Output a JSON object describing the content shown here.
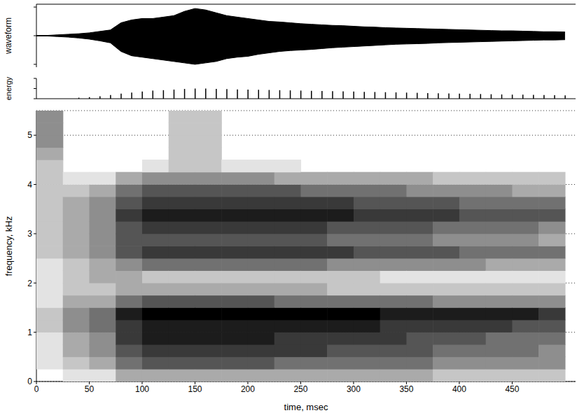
{
  "chart_data": [
    {
      "type": "area",
      "ylabel": "waveform",
      "color": "#000000",
      "tick_labels": false,
      "x": [
        0,
        10,
        20,
        30,
        40,
        50,
        60,
        70,
        80,
        90,
        100,
        110,
        120,
        130,
        140,
        150,
        160,
        170,
        180,
        190,
        200,
        210,
        220,
        230,
        240,
        250,
        260,
        270,
        280,
        290,
        300,
        310,
        320,
        330,
        340,
        350,
        360,
        370,
        380,
        390,
        400,
        410,
        420,
        430,
        440,
        450,
        460,
        470,
        480,
        490,
        500
      ],
      "upper": [
        0.01,
        0.01,
        0.03,
        0.05,
        0.07,
        0.1,
        0.15,
        0.2,
        0.45,
        0.55,
        0.6,
        0.6,
        0.65,
        0.7,
        0.85,
        0.95,
        0.9,
        0.8,
        0.7,
        0.65,
        0.6,
        0.55,
        0.5,
        0.48,
        0.45,
        0.42,
        0.4,
        0.38,
        0.36,
        0.35,
        0.33,
        0.31,
        0.3,
        0.28,
        0.27,
        0.26,
        0.25,
        0.24,
        0.23,
        0.22,
        0.21,
        0.2,
        0.19,
        0.18,
        0.17,
        0.17,
        0.16,
        0.15,
        0.14,
        0.14,
        0.13
      ],
      "lower": [
        -0.01,
        -0.01,
        -0.03,
        -0.05,
        -0.08,
        -0.12,
        -0.18,
        -0.25,
        -0.55,
        -0.7,
        -0.75,
        -0.8,
        -0.85,
        -0.9,
        -0.95,
        -1.0,
        -0.95,
        -0.9,
        -0.8,
        -0.75,
        -0.72,
        -0.65,
        -0.6,
        -0.55,
        -0.52,
        -0.5,
        -0.48,
        -0.45,
        -0.42,
        -0.4,
        -0.38,
        -0.36,
        -0.34,
        -0.32,
        -0.3,
        -0.29,
        -0.28,
        -0.27,
        -0.25,
        -0.24,
        -0.23,
        -0.22,
        -0.21,
        -0.2,
        -0.19,
        -0.18,
        -0.17,
        -0.16,
        -0.15,
        -0.15,
        -0.14
      ],
      "xlim": [
        0,
        510
      ],
      "ylim": [
        -1.1,
        1.1
      ],
      "yticks": [
        -1,
        0,
        1
      ]
    },
    {
      "type": "bar",
      "ylabel": "energy",
      "color": "#000000",
      "tick_labels": false,
      "x": [
        40,
        50,
        60,
        70,
        80,
        90,
        100,
        110,
        120,
        130,
        140,
        150,
        160,
        170,
        180,
        190,
        200,
        210,
        220,
        230,
        240,
        250,
        260,
        270,
        280,
        290,
        300,
        310,
        320,
        330,
        340,
        350,
        360,
        370,
        380,
        390,
        400,
        410,
        420,
        430,
        440,
        450,
        460,
        470,
        480,
        490,
        500
      ],
      "values": [
        0.05,
        0.08,
        0.12,
        0.18,
        0.25,
        0.3,
        0.35,
        0.4,
        0.42,
        0.45,
        0.48,
        0.5,
        0.5,
        0.48,
        0.47,
        0.46,
        0.45,
        0.44,
        0.43,
        0.42,
        0.41,
        0.4,
        0.39,
        0.38,
        0.37,
        0.36,
        0.35,
        0.34,
        0.33,
        0.32,
        0.31,
        0.3,
        0.29,
        0.28,
        0.27,
        0.26,
        0.25,
        0.24,
        0.23,
        0.22,
        0.21,
        0.2,
        0.2,
        0.19,
        0.18,
        0.17,
        0.16
      ],
      "xlim": [
        0,
        510
      ],
      "ylim": [
        0,
        1
      ],
      "yticks": [
        0,
        0.5,
        1
      ]
    },
    {
      "type": "heatmap",
      "xlabel": "time, msec",
      "ylabel": "frequency, kHz",
      "color": "#000000",
      "grid": true,
      "x": [
        0,
        25,
        50,
        75,
        100,
        125,
        150,
        175,
        200,
        225,
        250,
        275,
        300,
        325,
        350,
        375,
        400,
        425,
        450,
        475
      ],
      "y": [
        0,
        0.25,
        0.5,
        0.75,
        1,
        1.25,
        1.5,
        1.75,
        2,
        2.25,
        2.5,
        2.75,
        3,
        3.25,
        3.5,
        3.75,
        4,
        4.25,
        4.5,
        4.75,
        5,
        5.25
      ],
      "cells": [
        [
          0,
          1,
          1,
          1,
          2,
          2,
          1,
          1,
          1,
          1,
          2,
          2,
          2,
          2,
          2,
          2,
          2,
          2,
          3,
          4,
          4,
          4
        ],
        [
          1,
          2,
          3,
          3,
          4,
          4,
          3,
          2,
          2,
          2,
          3,
          3,
          3,
          3,
          3,
          2,
          1,
          0,
          0,
          0,
          0,
          0
        ],
        [
          1,
          3,
          4,
          4,
          5,
          5,
          3,
          2,
          3,
          3,
          4,
          4,
          4,
          4,
          4,
          3,
          1,
          0,
          0,
          0,
          0,
          0
        ],
        [
          3,
          5,
          6,
          7,
          7,
          8,
          5,
          3,
          3,
          4,
          6,
          6,
          6,
          7,
          6,
          5,
          3,
          0,
          0,
          0,
          0,
          0
        ],
        [
          3,
          6,
          7,
          8,
          8,
          9,
          6,
          3,
          2,
          5,
          7,
          6,
          7,
          8,
          7,
          6,
          4,
          1,
          0,
          0,
          0,
          0
        ],
        [
          3,
          6,
          7,
          8,
          8,
          9,
          6,
          3,
          2,
          5,
          7,
          6,
          7,
          8,
          7,
          6,
          4,
          2,
          2,
          2,
          2,
          2
        ],
        [
          3,
          6,
          7,
          8,
          8,
          9,
          6,
          3,
          2,
          5,
          7,
          6,
          7,
          8,
          7,
          6,
          4,
          2,
          2,
          2,
          2,
          2
        ],
        [
          3,
          6,
          7,
          8,
          8,
          9,
          6,
          3,
          2,
          5,
          7,
          6,
          7,
          8,
          7,
          6,
          4,
          1,
          0,
          0,
          0,
          0
        ],
        [
          3,
          6,
          7,
          8,
          8,
          9,
          6,
          3,
          2,
          5,
          7,
          6,
          7,
          8,
          7,
          6,
          4,
          1,
          0,
          0,
          0,
          0
        ],
        [
          3,
          5,
          7,
          7,
          8,
          9,
          5,
          3,
          2,
          5,
          7,
          6,
          7,
          8,
          7,
          6,
          3,
          1,
          0,
          0,
          0,
          0
        ],
        [
          3,
          5,
          7,
          7,
          8,
          9,
          5,
          3,
          2,
          5,
          7,
          6,
          7,
          8,
          7,
          5,
          3,
          0,
          0,
          0,
          0,
          0
        ],
        [
          3,
          5,
          6,
          7,
          8,
          9,
          5,
          2,
          2,
          4,
          7,
          5,
          6,
          8,
          7,
          5,
          3,
          0,
          0,
          0,
          0,
          0
        ],
        [
          3,
          5,
          6,
          7,
          8,
          9,
          5,
          2,
          2,
          4,
          6,
          5,
          6,
          7,
          6,
          5,
          3,
          0,
          0,
          0,
          0,
          0
        ],
        [
          3,
          5,
          6,
          7,
          7,
          8,
          5,
          2,
          1,
          4,
          6,
          5,
          6,
          7,
          6,
          5,
          3,
          0,
          0,
          0,
          0,
          0
        ],
        [
          3,
          5,
          6,
          6,
          7,
          8,
          5,
          2,
          1,
          4,
          6,
          5,
          6,
          7,
          6,
          4,
          3,
          0,
          0,
          0,
          0,
          0
        ],
        [
          2,
          4,
          5,
          6,
          7,
          8,
          4,
          2,
          1,
          4,
          6,
          4,
          5,
          7,
          6,
          4,
          2,
          0,
          0,
          0,
          0,
          0
        ],
        [
          2,
          4,
          5,
          6,
          7,
          8,
          4,
          2,
          1,
          4,
          5,
          4,
          5,
          6,
          5,
          4,
          2,
          0,
          0,
          0,
          0,
          0
        ],
        [
          2,
          4,
          5,
          5,
          7,
          8,
          4,
          2,
          1,
          3,
          5,
          4,
          5,
          6,
          5,
          4,
          2,
          0,
          0,
          0,
          0,
          0
        ],
        [
          2,
          4,
          5,
          5,
          6,
          8,
          4,
          2,
          1,
          3,
          5,
          4,
          5,
          6,
          5,
          3,
          2,
          0,
          0,
          0,
          0,
          0
        ],
        [
          2,
          4,
          4,
          5,
          6,
          7,
          4,
          2,
          1,
          3,
          5,
          3,
          4,
          6,
          5,
          3,
          2,
          0,
          0,
          0,
          0,
          0
        ]
      ],
      "xlim": [
        0,
        510
      ],
      "xticks": [
        0,
        50,
        100,
        150,
        200,
        250,
        300,
        350,
        400,
        450
      ],
      "ylim": [
        0,
        5.5
      ],
      "yticks": [
        0,
        1,
        2,
        3,
        4,
        5
      ]
    }
  ]
}
